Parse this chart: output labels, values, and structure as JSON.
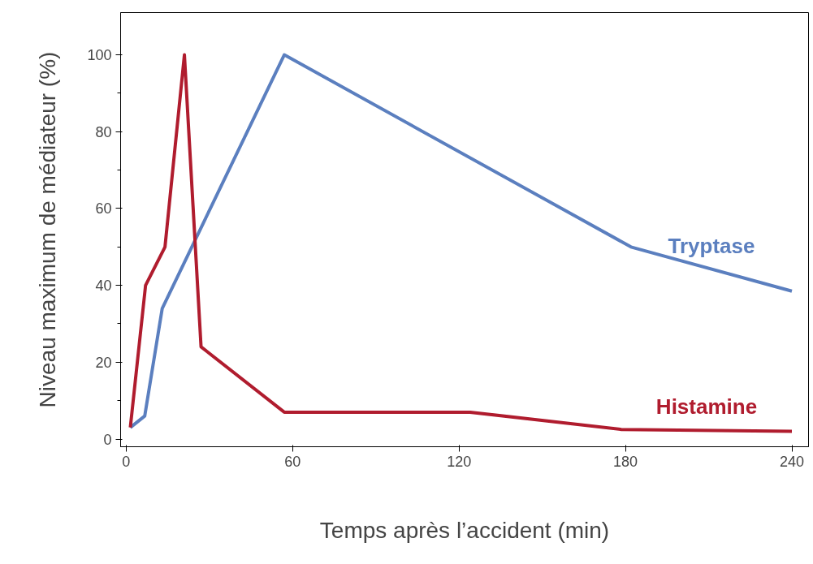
{
  "chart_data": {
    "type": "line",
    "xlabel": "Temps après l’accident (min)",
    "ylabel": "Niveau maximum de médiateur (%)",
    "xlim": [
      -2,
      246
    ],
    "ylim": [
      -2,
      111
    ],
    "xticks": [
      0,
      60,
      120,
      180,
      240
    ],
    "yticks": [
      0,
      20,
      40,
      60,
      80,
      100
    ],
    "grid": false,
    "marker": "none",
    "line_style": "solid",
    "series": [
      {
        "name": "Tryptase",
        "color": "#5b7fbf",
        "x": [
          1.5,
          6.7,
          13,
          57,
          182,
          240
        ],
        "values": [
          3,
          6,
          34,
          100,
          50,
          38.5
        ]
      },
      {
        "name": "Histamine",
        "color": "#b01c2e",
        "x": [
          1.5,
          7,
          14,
          21,
          27,
          57,
          124,
          178.5,
          240
        ],
        "values": [
          3,
          40,
          50,
          100,
          24,
          7,
          7,
          2.5,
          2
        ]
      }
    ]
  }
}
